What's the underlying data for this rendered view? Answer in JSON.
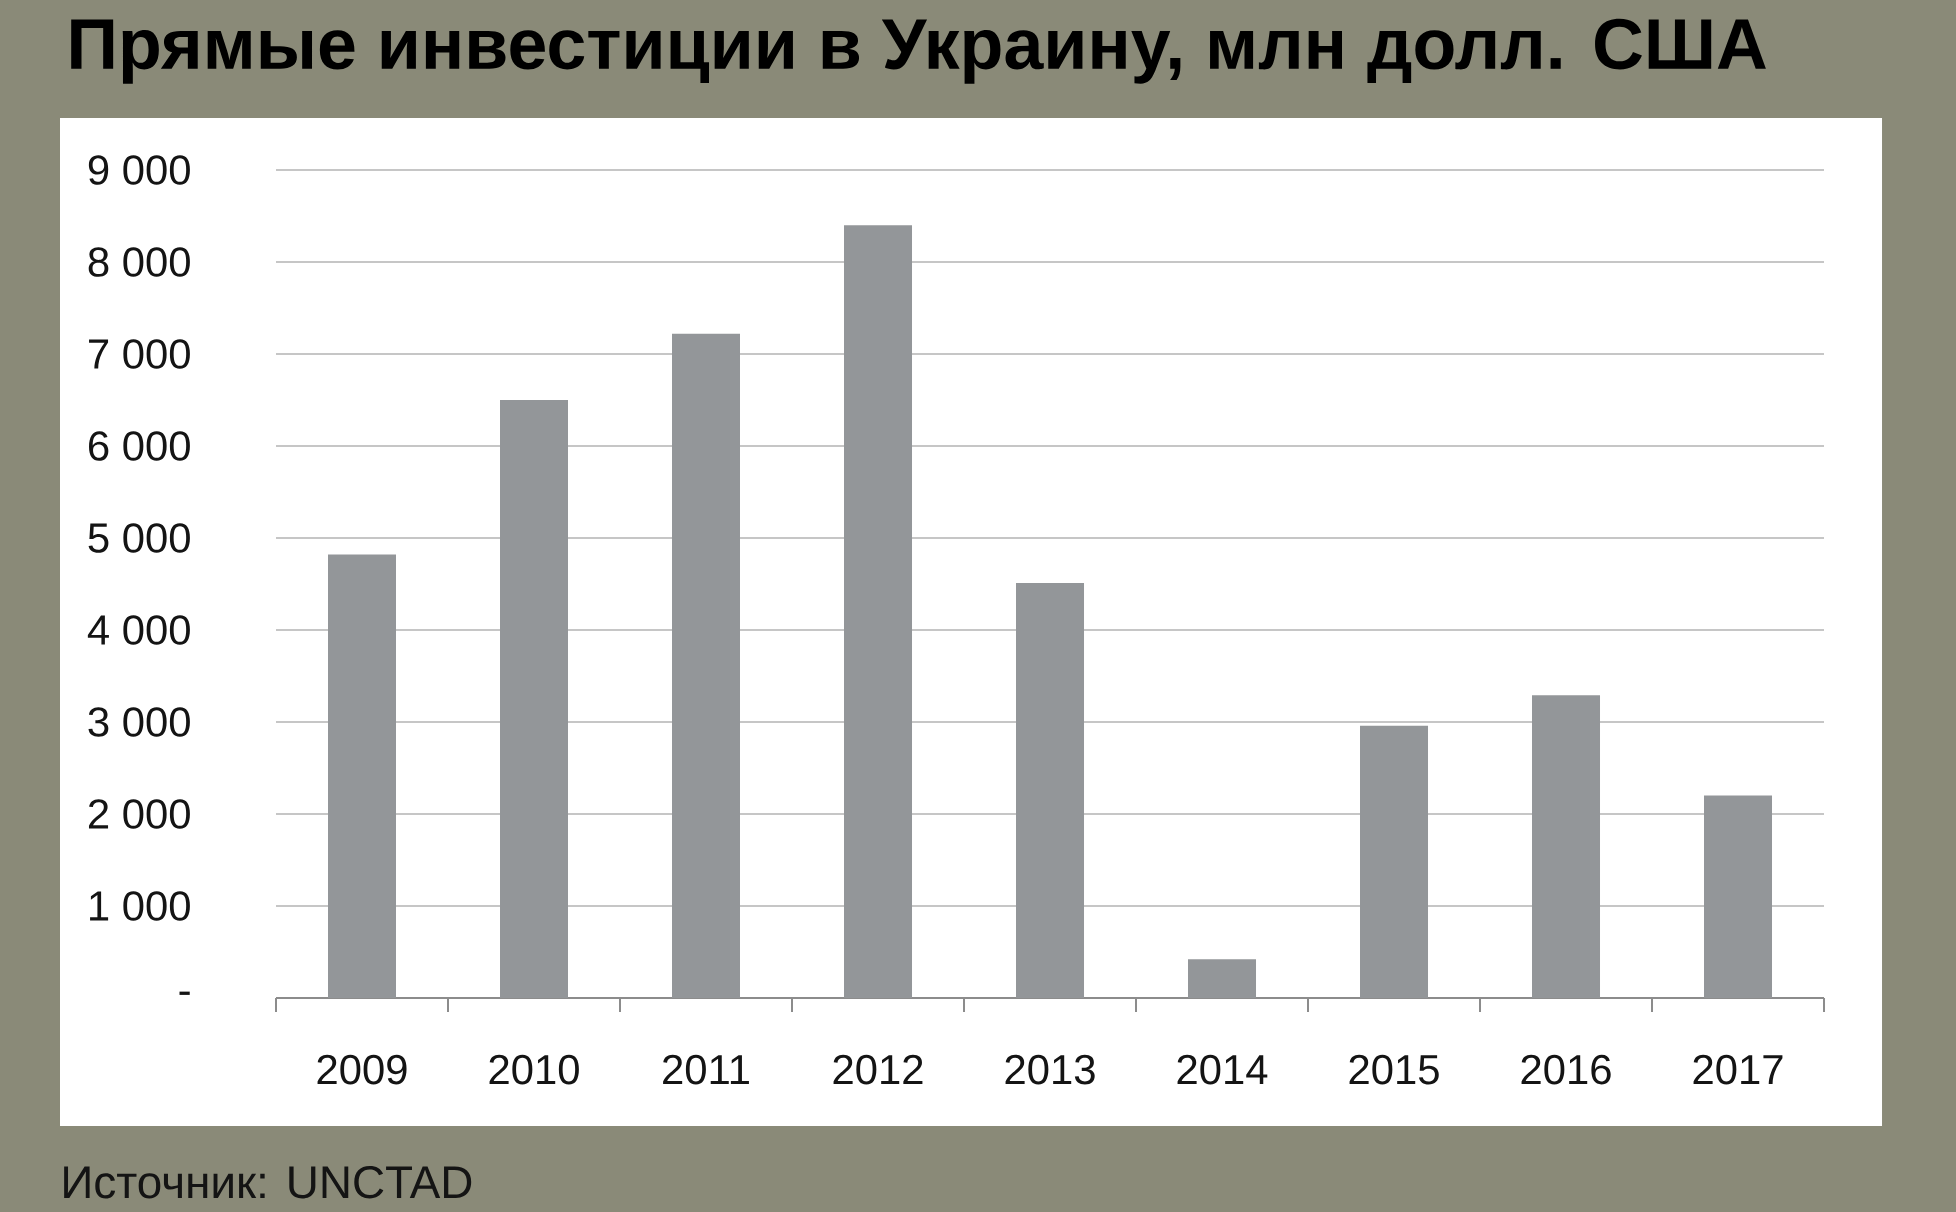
{
  "chart_data": {
    "type": "bar",
    "title": "Прямые инвестиции в Украину, млн долл. США",
    "categories": [
      "2009",
      "2010",
      "2011",
      "2012",
      "2013",
      "2014",
      "2015",
      "2016",
      "2017"
    ],
    "values": [
      4820,
      6500,
      7220,
      8400,
      4510,
      420,
      2960,
      3290,
      2200
    ],
    "color": "#939699",
    "ylim": [
      0,
      9000
    ],
    "yticks": [
      {
        "value": 0,
        "label": "-"
      },
      {
        "value": 1000,
        "label": "1 000"
      },
      {
        "value": 2000,
        "label": "2 000"
      },
      {
        "value": 3000,
        "label": "3 000"
      },
      {
        "value": 4000,
        "label": "4 000"
      },
      {
        "value": 5000,
        "label": "5 000"
      },
      {
        "value": 6000,
        "label": "6 000"
      },
      {
        "value": 7000,
        "label": "7 000"
      },
      {
        "value": 8000,
        "label": "8 000"
      },
      {
        "value": 9000,
        "label": "9 000"
      }
    ],
    "grid": "y",
    "annotations": [
      "Источник: UNCTAD"
    ]
  }
}
